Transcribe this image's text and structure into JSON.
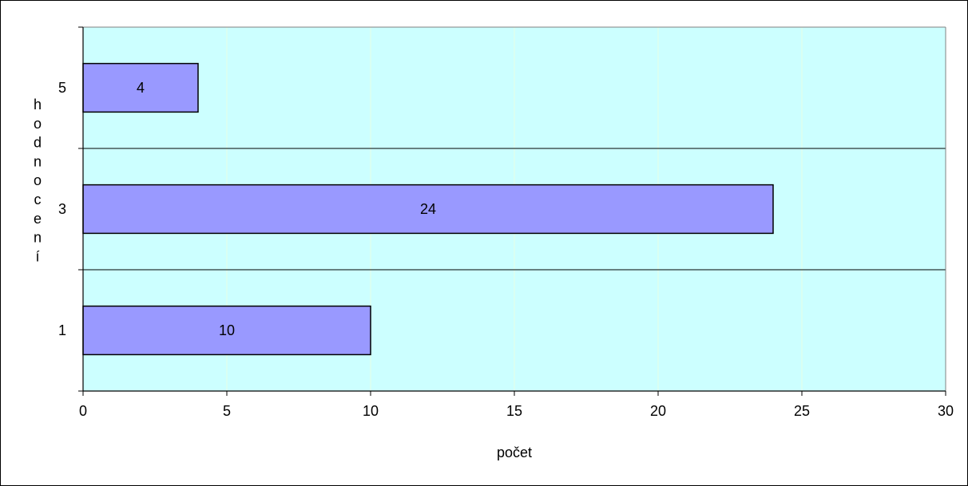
{
  "chart_data": {
    "type": "bar",
    "orientation": "horizontal",
    "title": "",
    "xlabel": "počet",
    "ylabel": "hodnocení",
    "categories": [
      "1",
      "3",
      "5"
    ],
    "values": [
      10,
      24,
      4
    ],
    "data_labels": [
      "10",
      "24",
      "4"
    ],
    "xlim": [
      0,
      30
    ],
    "xticks": [
      0,
      5,
      10,
      15,
      20,
      25,
      30
    ],
    "x_tick_labels": [
      "0",
      "5",
      "10",
      "15",
      "20",
      "25",
      "30"
    ],
    "grid": "category separators",
    "legend": "none",
    "colors": {
      "plot_background": "#ccffff",
      "bar_fill": "#9999ff",
      "bar_stroke": "#000000"
    }
  }
}
